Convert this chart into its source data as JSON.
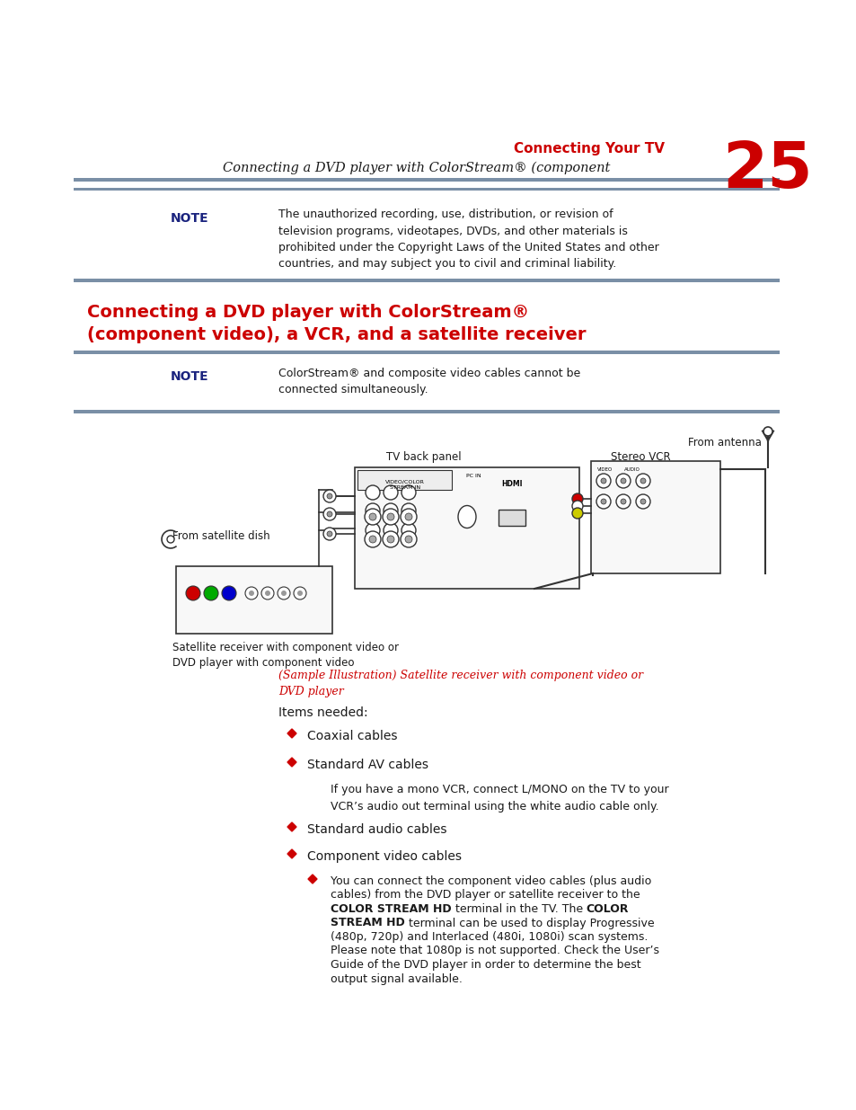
{
  "page_number": "25",
  "header_red": "Connecting Your TV",
  "header_italic": "Connecting a DVD player with ColorStream® (component",
  "note1_label": "NOTE",
  "note1_text": "The unauthorized recording, use, distribution, or revision of\ntelevision programs, videotapes, DVDs, and other materials is\nprohibited under the Copyright Laws of the United States and other\ncountries, and may subject you to civil and criminal liability.",
  "section_title_line1": "Connecting a DVD player with ColorStream®",
  "section_title_line2": "(component video), a VCR, and a satellite receiver",
  "note2_label": "NOTE",
  "note2_text": "ColorStream® and composite video cables cannot be\nconnected simultaneously.",
  "from_antenna": "From antenna",
  "tv_back_panel": "TV back panel",
  "stereo_vcr": "Stereo VCR",
  "from_satellite_dish": "From satellite dish",
  "satellite_receiver_label": "Satellite receiver with component video or\nDVD player with component video",
  "sample_illustration": "(Sample Illustration) Satellite receiver with component video or\nDVD player",
  "items_needed": "Items needed:",
  "bullet1": "Coaxial cables",
  "bullet2": "Standard AV cables",
  "av_subnote": "If you have a mono VCR, connect L/MONO on the TV to your\nVCR’s audio out terminal using the white audio cable only.",
  "bullet3": "Standard audio cables",
  "bullet4": "Component video cables",
  "sub_line1": "You can connect the component video cables (plus audio",
  "sub_line2": "cables) from the DVD player or satellite receiver to the",
  "sub_line3_norm": "terminal in the TV. The ",
  "sub_line3_bold1": "COLOR STREAM HD",
  "sub_line3_bold2": "COLOR",
  "sub_line4_norm": "terminal can be used to display Progressive",
  "sub_line4_bold": "STREAM HD",
  "sub_line5": "(480p, 720p) and Interlaced (480i, 1080i) scan systems.",
  "sub_line6": "Please note that 1080p is not supported. Check the User’s",
  "sub_line7": "Guide of the DVD player in order to determine the best",
  "sub_line8": "output signal available.",
  "colors": {
    "red": "#cc0000",
    "blue_note": "#1a237e",
    "black": "#1a1a1a",
    "white": "#ffffff",
    "divider": "#7a8fa6",
    "diagram_line": "#333333"
  }
}
